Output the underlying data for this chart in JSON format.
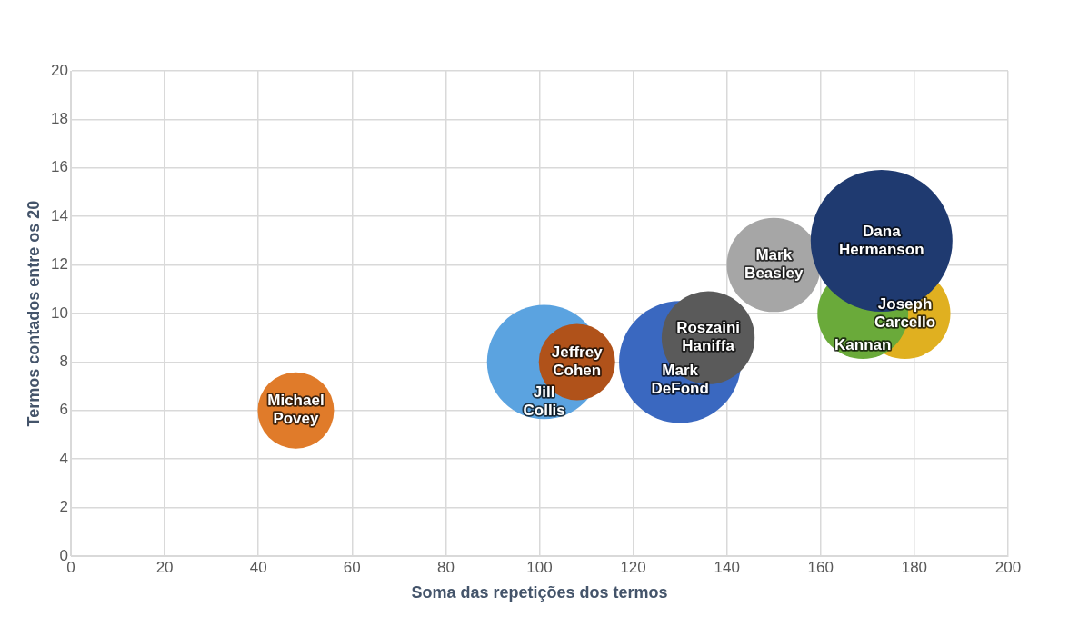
{
  "chart_data": {
    "type": "bubble",
    "xlabel": "Soma das repetições dos termos",
    "ylabel": "Termos contados entre os 20",
    "xlim": [
      0,
      200
    ],
    "xticks": [
      0,
      20,
      40,
      60,
      80,
      100,
      120,
      140,
      160,
      180,
      200
    ],
    "ylim": [
      0,
      20
    ],
    "yticks": [
      0,
      2,
      4,
      6,
      8,
      10,
      12,
      14,
      16,
      18,
      20
    ],
    "grid": true,
    "legend": false,
    "series": [
      {
        "name": "Michael Povey",
        "color": "#e07b2a",
        "x": [
          48
        ],
        "values": [
          6
        ],
        "sizes": [
          0.29
        ]
      },
      {
        "name": "Jill Collis",
        "color": "#5ba3e0",
        "x": [
          101
        ],
        "values": [
          8
        ],
        "sizes": [
          0.65
        ]
      },
      {
        "name": "Jeffrey Cohen",
        "color": "#b0521a",
        "x": [
          108
        ],
        "values": [
          8
        ],
        "sizes": [
          0.29
        ]
      },
      {
        "name": "Mark DeFond",
        "color": "#3a68c0",
        "x": [
          130
        ],
        "values": [
          8
        ],
        "sizes": [
          0.74
        ]
      },
      {
        "name": "Roszaini Haniffa",
        "color": "#5a5a5a",
        "x": [
          136
        ],
        "values": [
          9
        ],
        "sizes": [
          0.43
        ]
      },
      {
        "name": "Joseph Carcello",
        "color": "#e0b020",
        "x": [
          178
        ],
        "values": [
          10
        ],
        "sizes": [
          0.41
        ]
      },
      {
        "name": "Kannan",
        "color": "#6aaa3a",
        "x": [
          169
        ],
        "values": [
          10
        ],
        "sizes": [
          0.41
        ]
      },
      {
        "name": "Mark Beasley",
        "color": "#a6a6a6",
        "x": [
          150
        ],
        "values": [
          12
        ],
        "sizes": [
          0.44
        ]
      },
      {
        "name": "Dana Hermanson",
        "color": "#1f3a70",
        "x": [
          173
        ],
        "values": [
          13
        ],
        "sizes": [
          1
        ]
      }
    ]
  }
}
